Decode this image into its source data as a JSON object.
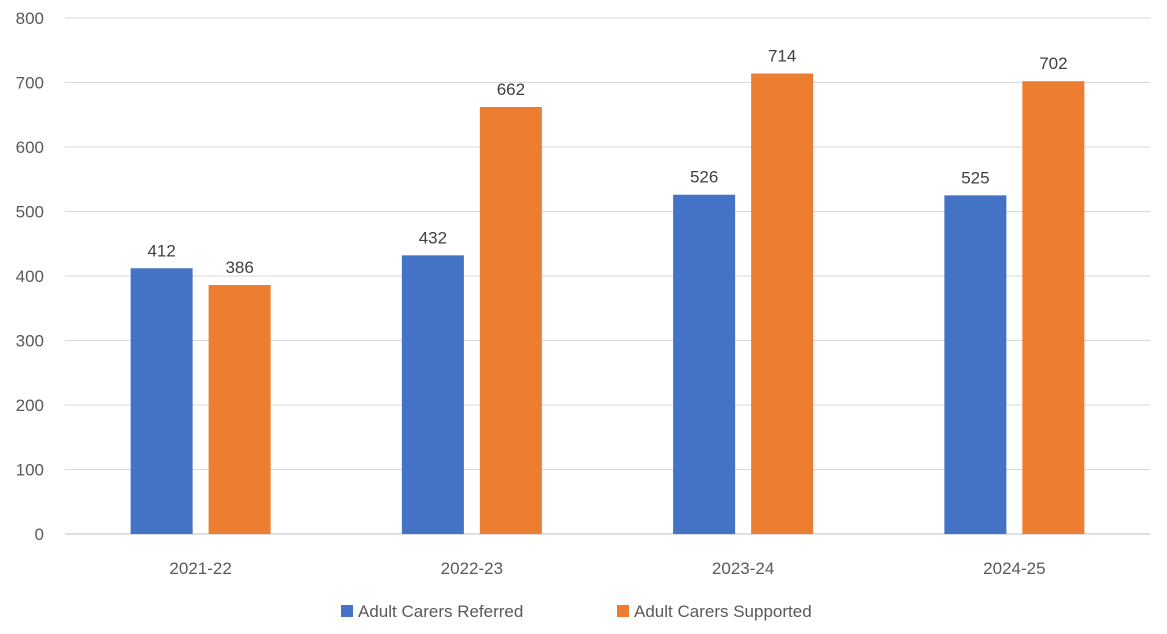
{
  "chart_data": {
    "type": "bar",
    "title": "",
    "xlabel": "",
    "ylabel": "",
    "categories": [
      "2021-22",
      "2022-23",
      "2023-24",
      "2024-25"
    ],
    "series": [
      {
        "name": "Adult Carers Referred",
        "color": "#4472C4",
        "values": [
          412,
          432,
          526,
          525
        ]
      },
      {
        "name": "Adult Carers Supported",
        "color": "#ED7D31",
        "values": [
          386,
          662,
          714,
          702
        ]
      }
    ],
    "ylim": [
      0,
      800
    ],
    "yticks": [
      0,
      100,
      200,
      300,
      400,
      500,
      600,
      700,
      800
    ],
    "grid": true,
    "data_labels": true,
    "legend_position": "bottom"
  }
}
